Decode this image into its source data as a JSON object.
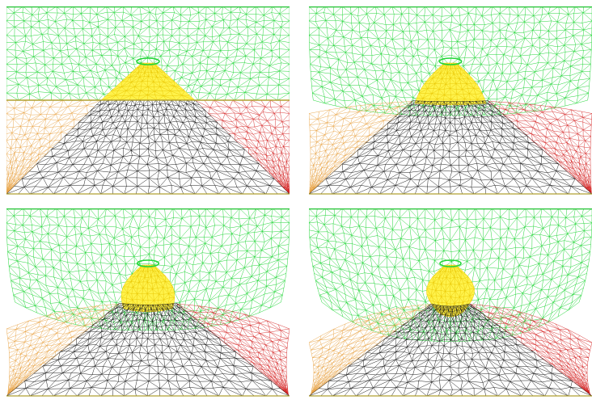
{
  "figure": {
    "panels": [
      {
        "deformation": 0.0
      },
      {
        "deformation": 0.33
      },
      {
        "deformation": 0.66
      },
      {
        "deformation": 1.0
      }
    ],
    "colors": {
      "upper_body_mesh": "#22d638",
      "upper_body_edge": "#20c230",
      "insert_mesh": "#e8c400",
      "insert_fill": "#fff24a",
      "left_wedge_mesh": "#e8a040",
      "right_wedge_mesh": "#d42020",
      "center_mesh": "#1a1a1a",
      "lower_edge": "#b0a030",
      "background": "#ffffff"
    }
  }
}
